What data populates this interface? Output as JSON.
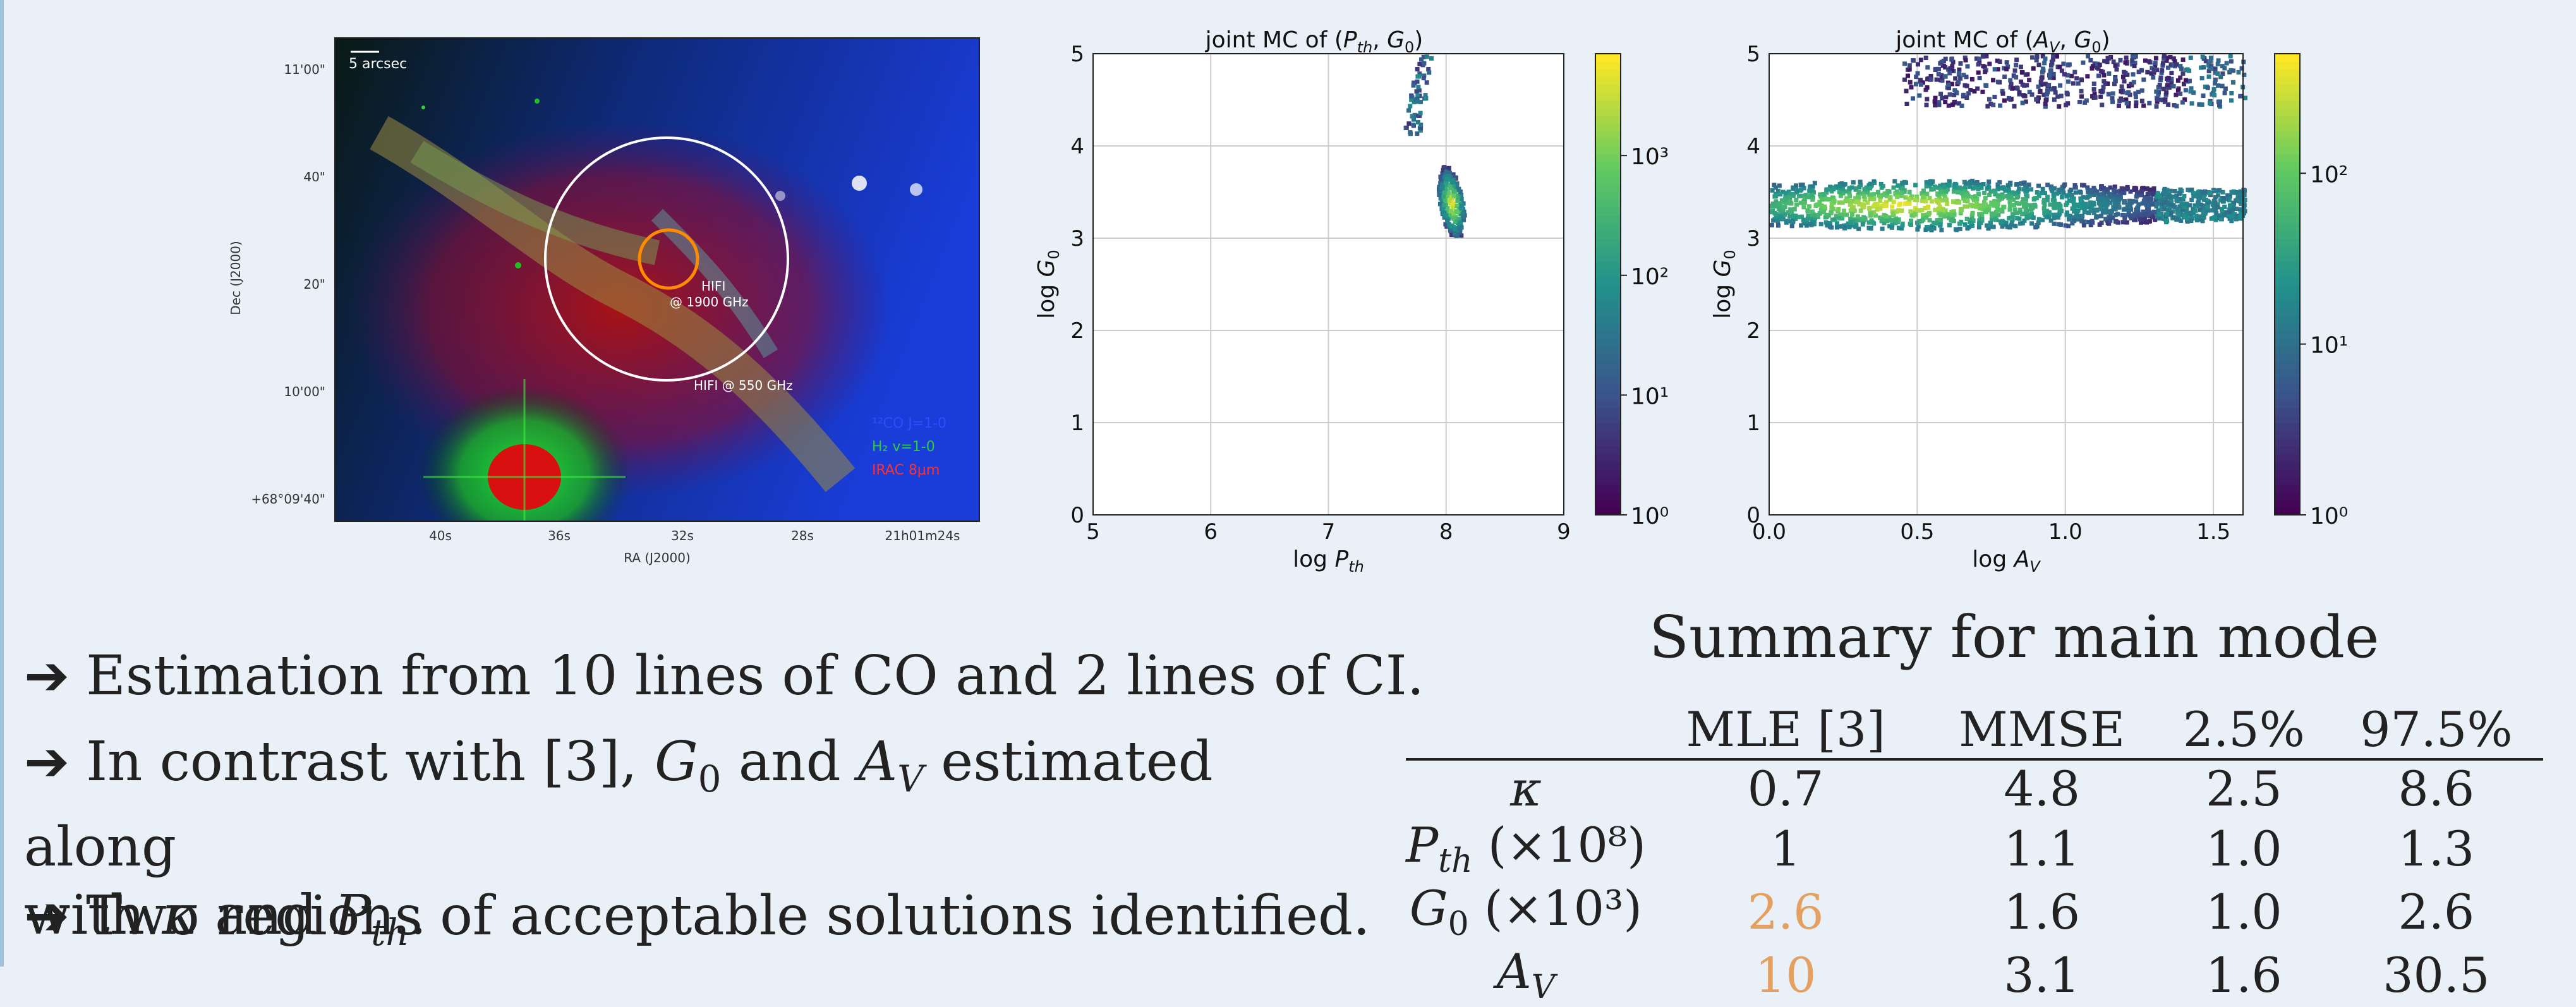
{
  "sky_image": {
    "scale_bar": "5 arcsec",
    "dec_ticks": [
      "11'00\"",
      "40\"",
      "20\"",
      "10'00\"",
      "+68°09'40\""
    ],
    "ra_ticks": [
      "40s",
      "36s",
      "32s",
      "28s",
      "21h01m24s"
    ],
    "xlabel": "RA (J2000)",
    "ylabel": "Dec (J2000)",
    "annot_hifi1900": "HIFI",
    "annot_hifi1900_b": "@ 1900 GHz",
    "annot_hifi550": "HIFI @ 550 GHz",
    "legend": [
      {
        "text": "¹²CO J=1-0",
        "color": "#2f4dff"
      },
      {
        "text": "H₂ v=1-0",
        "color": "#2ecc40"
      },
      {
        "text": "IRAC 8μm",
        "color": "#ff3030"
      }
    ]
  },
  "chart_data": [
    {
      "type": "heatmap",
      "title": "joint MC of (P_th, G_0)",
      "title_prefix": "joint MC of (",
      "title_suffix": ")",
      "xlabel": "log P_th",
      "ylabel": "log G_0",
      "xlim": [
        5,
        9
      ],
      "ylim": [
        0,
        5
      ],
      "xticks": [
        "5",
        "6",
        "7",
        "8",
        "9"
      ],
      "yticks": [
        "0",
        "1",
        "2",
        "3",
        "4",
        "5"
      ],
      "colorbar": {
        "scale": "log",
        "ticks": [
          "10⁰",
          "10¹",
          "10²",
          "10³"
        ]
      },
      "regions": [
        {
          "x": 7.8,
          "y": 4.65,
          "density": "low"
        },
        {
          "x": 8.05,
          "y": 3.4,
          "density": "high"
        }
      ]
    },
    {
      "type": "heatmap",
      "title": "joint MC of (A_V, G_0)",
      "title_prefix": "joint MC of (",
      "title_suffix": ")",
      "xlabel": "log A_V",
      "ylabel": "log G_0",
      "xlim": [
        0.0,
        1.6
      ],
      "ylim": [
        0,
        5
      ],
      "xticks": [
        "0.0",
        "0.5",
        "1.0",
        "1.5"
      ],
      "yticks": [
        "0",
        "1",
        "2",
        "3",
        "4",
        "5"
      ],
      "colorbar": {
        "scale": "log",
        "ticks": [
          "10⁰",
          "10¹",
          "10²"
        ]
      },
      "regions": [
        {
          "x_range": [
            0.45,
            1.6
          ],
          "y": 4.7,
          "density": "low"
        },
        {
          "x_range": [
            0.0,
            1.6
          ],
          "y": 3.35,
          "peak_x": 0.45,
          "density": "high"
        }
      ]
    }
  ],
  "bullets": [
    {
      "arrow": "➔",
      "text": "Estimation from 10 lines of CO and 2 lines of CI."
    },
    {
      "arrow": "➔",
      "text_a": "In contrast with [3], ",
      "text_b": " and ",
      "text_c": " estimated along",
      "line2_a": "with ",
      "line2_b": " and "
    },
    {
      "arrow": "➔",
      "text": "Two regions of acceptable solutions identified."
    }
  ],
  "table": {
    "title": "Summary for main mode",
    "headers": [
      "",
      "MLE [3]",
      "MMSE",
      "2.5%",
      "97.5%"
    ],
    "rows": [
      {
        "label": "κ",
        "unit": "",
        "values": [
          "0.7",
          "4.8",
          "2.5",
          "8.6"
        ],
        "highlight": false
      },
      {
        "label": "P_th",
        "unit": "(×10⁸)",
        "values": [
          "1",
          "1.1",
          "1.0",
          "1.3"
        ],
        "highlight": false
      },
      {
        "label": "G_0",
        "unit": "(×10³)",
        "values": [
          "2.6",
          "1.6",
          "1.0",
          "2.6"
        ],
        "highlight": true
      },
      {
        "label": "A_V",
        "unit": "",
        "values": [
          "10",
          "3.1",
          "1.6",
          "30.5"
        ],
        "highlight": true
      }
    ],
    "highlight_color": "#e3a061"
  }
}
